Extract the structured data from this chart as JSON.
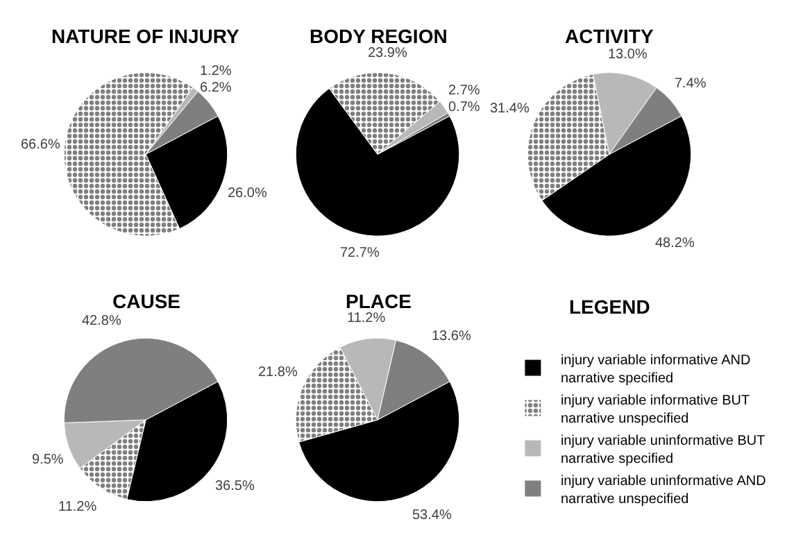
{
  "chart_data": [
    {
      "type": "pie",
      "title": "NATURE OF INJURY",
      "categories": [
        "injury variable informative AND narrative specified",
        "injury variable informative BUT narrative unspecified",
        "injury variable uninformative BUT narrative specified",
        "injury variable uninformative AND narrative unspecified"
      ],
      "values": [
        26.0,
        66.6,
        1.2,
        6.2
      ],
      "value_labels": [
        "26.0%",
        "66.6%",
        "1.2%",
        "6.2%"
      ],
      "colors": [
        "#000000",
        "#ffffff",
        "#b8b8b8",
        "#7f7f7f"
      ],
      "legend": "bottom right",
      "legend_title": "LEGEND"
    },
    {
      "type": "pie",
      "title": "BODY REGION",
      "categories": [
        null,
        null,
        null,
        null
      ],
      "values": [
        72.7,
        23.9,
        2.7,
        0.7
      ],
      "value_labels": [
        "72.7%",
        "23.9%",
        "2.7%",
        "0.7%"
      ],
      "colors": [
        "#000000",
        "#ffffff",
        "#b8b8b8",
        "#7f7f7f"
      ]
    },
    {
      "type": "pie",
      "title": "ACTIVITY",
      "categories": [
        null,
        null,
        null,
        null
      ],
      "values": [
        48.2,
        31.4,
        13.0,
        7.4
      ],
      "value_labels": [
        "48.2%",
        "31.4%",
        "13.0%",
        "7.4%"
      ],
      "colors": [
        "#000000",
        "#ffffff",
        "#b8b8b8",
        "#7f7f7f"
      ]
    },
    {
      "type": "pie",
      "title": "CAUSE",
      "categories": [
        null,
        null,
        null,
        null
      ],
      "values": [
        36.5,
        11.2,
        9.5,
        42.8
      ],
      "value_labels": [
        "36.5%",
        "11.2%",
        "9.5%",
        "42.8%"
      ],
      "colors": [
        "#000000",
        "#ffffff",
        "#b8b8b8",
        "#7f7f7f"
      ]
    },
    {
      "type": "pie",
      "title": "PLACE",
      "categories": [
        null,
        null,
        null,
        null
      ],
      "values": [
        53.4,
        21.8,
        11.2,
        13.6
      ],
      "value_labels": [
        "53.4%",
        "21.8%",
        "11.2%",
        "13.6%"
      ],
      "colors": [
        "#000000",
        "#ffffff",
        "#b8b8b8",
        "#7f7f7f"
      ]
    }
  ]
}
